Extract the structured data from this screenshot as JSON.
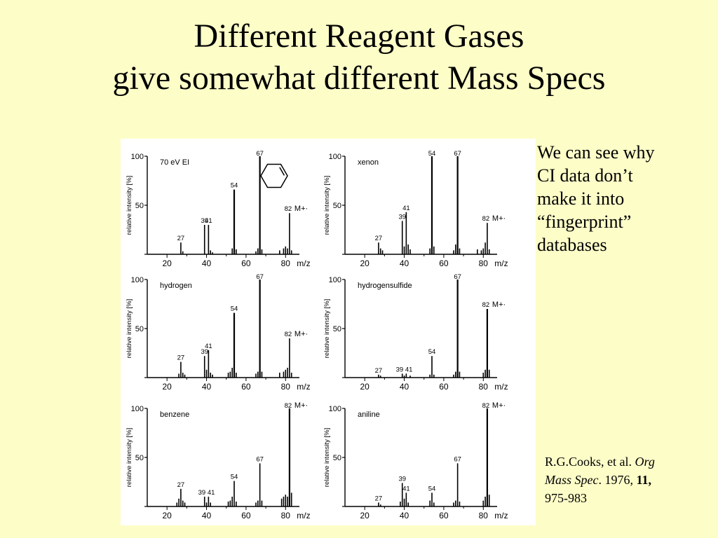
{
  "slide": {
    "title_line1": "Different Reagent Gases",
    "title_line2": "give somewhat different Mass Specs",
    "note_lines": [
      "We can see why",
      "CI data don’t",
      "make it into",
      "“fingerprint”",
      "databases"
    ],
    "ref": {
      "authors": "R.G.Cooks, et al.",
      "journal_1": "Org",
      "journal_2": "Mass Spec",
      "year": ". 1976,",
      "volume": "11,",
      "pages": "975-983"
    }
  },
  "chart_data": [
    {
      "type": "bar",
      "title": "70 eV EI",
      "ylabel": "relative intensity [%]",
      "xlabel": "m/z",
      "xlim": [
        10,
        87
      ],
      "ylim": [
        0,
        100
      ],
      "xticks": [
        20,
        40,
        60,
        80
      ],
      "yticks": [
        0,
        50,
        100
      ],
      "x": [
        27,
        28,
        39,
        41,
        42,
        43,
        53,
        54,
        55,
        65,
        66,
        67,
        68,
        77,
        79,
        80,
        81,
        82,
        83
      ],
      "values": [
        12,
        3,
        30,
        30,
        4,
        2,
        6,
        66,
        5,
        3,
        6,
        100,
        5,
        4,
        6,
        8,
        6,
        42,
        4
      ],
      "peak_labels": [
        {
          "x": 27,
          "label": "27"
        },
        {
          "x": 39,
          "label": "39"
        },
        {
          "x": 41,
          "label": "41"
        },
        {
          "x": 54,
          "label": "54"
        },
        {
          "x": 67,
          "label": "67"
        },
        {
          "x": 82,
          "label": "82"
        }
      ],
      "ion_label": "M+·",
      "structure": "cyclohexene"
    },
    {
      "type": "bar",
      "title": "xenon",
      "ylabel": "relative intensity [%]",
      "xlabel": "m/z",
      "xlim": [
        10,
        87
      ],
      "ylim": [
        0,
        100
      ],
      "xticks": [
        20,
        40,
        60,
        80
      ],
      "yticks": [
        0,
        50,
        100
      ],
      "x": [
        27,
        28,
        29,
        39,
        40,
        41,
        42,
        43,
        53,
        54,
        55,
        65,
        66,
        67,
        68,
        77,
        79,
        80,
        81,
        82,
        83
      ],
      "values": [
        12,
        6,
        4,
        34,
        8,
        43,
        10,
        5,
        6,
        100,
        8,
        4,
        10,
        100,
        6,
        5,
        4,
        6,
        12,
        32,
        5
      ],
      "peak_labels": [
        {
          "x": 27,
          "label": "27"
        },
        {
          "x": 39,
          "label": "39"
        },
        {
          "x": 41,
          "label": "41"
        },
        {
          "x": 54,
          "label": "54"
        },
        {
          "x": 67,
          "label": "67"
        },
        {
          "x": 82,
          "label": "82"
        }
      ],
      "ion_label": "M+·"
    },
    {
      "type": "bar",
      "title": "hydrogen",
      "ylabel": "relative intensity [%]",
      "xlabel": "m/z",
      "xlim": [
        10,
        87
      ],
      "ylim": [
        0,
        100
      ],
      "xticks": [
        20,
        40,
        60,
        80
      ],
      "yticks": [
        0,
        50,
        100
      ],
      "x": [
        26,
        27,
        28,
        29,
        39,
        40,
        41,
        42,
        43,
        51,
        52,
        53,
        54,
        55,
        65,
        66,
        67,
        68,
        77,
        79,
        80,
        81,
        82,
        83
      ],
      "values": [
        4,
        16,
        5,
        3,
        22,
        8,
        28,
        5,
        3,
        5,
        6,
        10,
        66,
        5,
        4,
        6,
        100,
        6,
        5,
        6,
        8,
        10,
        40,
        5
      ],
      "peak_labels": [
        {
          "x": 27,
          "label": "27"
        },
        {
          "x": 39,
          "label": "39"
        },
        {
          "x": 41,
          "label": "41"
        },
        {
          "x": 54,
          "label": "54"
        },
        {
          "x": 67,
          "label": "67"
        },
        {
          "x": 82,
          "label": "82"
        }
      ],
      "ion_label": "M+·"
    },
    {
      "type": "bar",
      "title": "hydrogensulfide",
      "ylabel": "relative intensity [%]",
      "xlabel": "m/z",
      "xlim": [
        10,
        87
      ],
      "ylim": [
        0,
        100
      ],
      "xticks": [
        20,
        40,
        60,
        80
      ],
      "yticks": [
        0,
        50,
        100
      ],
      "x": [
        27,
        28,
        39,
        40,
        41,
        43,
        53,
        54,
        55,
        65,
        66,
        67,
        68,
        80,
        81,
        82,
        83
      ],
      "values": [
        3,
        2,
        4,
        2,
        4,
        2,
        3,
        22,
        3,
        3,
        6,
        100,
        6,
        5,
        8,
        70,
        8
      ],
      "peak_labels": [
        {
          "x": 27,
          "label": "27"
        },
        {
          "x": 40,
          "label": "39 41"
        },
        {
          "x": 54,
          "label": "54"
        },
        {
          "x": 67,
          "label": "67"
        },
        {
          "x": 82,
          "label": "82"
        }
      ],
      "ion_label": "M+·"
    },
    {
      "type": "bar",
      "title": "benzene",
      "ylabel": "relative intensity [%]",
      "xlabel": "m/z",
      "xlim": [
        10,
        87
      ],
      "ylim": [
        0,
        100
      ],
      "xticks": [
        20,
        40,
        60,
        80
      ],
      "yticks": [
        0,
        50,
        100
      ],
      "x": [
        25,
        26,
        27,
        28,
        29,
        39,
        40,
        41,
        42,
        51,
        52,
        53,
        54,
        55,
        65,
        66,
        67,
        68,
        78,
        79,
        80,
        81,
        82,
        83
      ],
      "values": [
        4,
        8,
        18,
        6,
        4,
        10,
        4,
        10,
        4,
        5,
        6,
        10,
        26,
        5,
        4,
        6,
        44,
        6,
        8,
        10,
        12,
        10,
        100,
        14
      ],
      "peak_labels": [
        {
          "x": 27,
          "label": "27"
        },
        {
          "x": 40,
          "label": "39 41"
        },
        {
          "x": 54,
          "label": "54"
        },
        {
          "x": 67,
          "label": "67"
        },
        {
          "x": 82,
          "label": "82"
        }
      ],
      "ion_label": "M+·"
    },
    {
      "type": "bar",
      "title": "aniline",
      "ylabel": "relative intensity [%]",
      "xlabel": "m/z",
      "xlim": [
        10,
        87
      ],
      "ylim": [
        0,
        100
      ],
      "xticks": [
        20,
        40,
        60,
        80
      ],
      "yticks": [
        0,
        50,
        100
      ],
      "x": [
        27,
        28,
        38,
        39,
        40,
        41,
        42,
        53,
        54,
        55,
        65,
        66,
        67,
        68,
        80,
        81,
        82,
        83
      ],
      "values": [
        4,
        2,
        5,
        24,
        8,
        14,
        4,
        6,
        14,
        4,
        4,
        6,
        44,
        5,
        6,
        10,
        100,
        12
      ],
      "peak_labels": [
        {
          "x": 27,
          "label": "27"
        },
        {
          "x": 39,
          "label": "39"
        },
        {
          "x": 41,
          "label": "41"
        },
        {
          "x": 54,
          "label": "54"
        },
        {
          "x": 67,
          "label": "67"
        },
        {
          "x": 82,
          "label": "82"
        }
      ],
      "ion_label": "M+·"
    }
  ]
}
